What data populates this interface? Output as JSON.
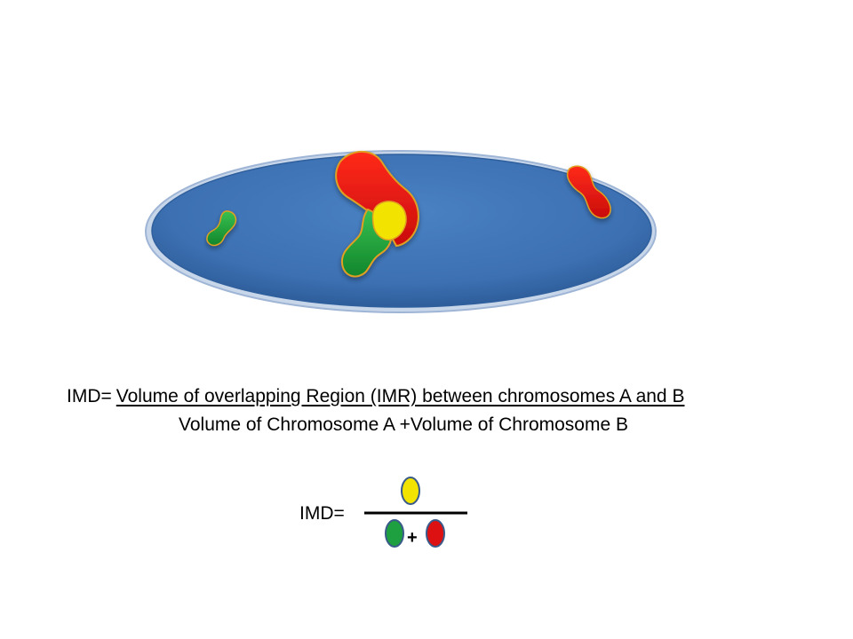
{
  "formula": {
    "lhs": "IMD=",
    "numerator": "Volume of overlapping Region (IMR) between chromosomes A and B",
    "denominator": "Volume of Chromosome A  +Volume of Chromosome B"
  },
  "symbolic_formula": {
    "lhs": "IMD=",
    "operator": "+"
  },
  "colors": {
    "nucleus": "#3d72b4",
    "chromosome_a": "#22a040",
    "chromosome_b": "#dd1111",
    "overlap": "#f2e400",
    "legend_outline": "#3a5a8a"
  }
}
